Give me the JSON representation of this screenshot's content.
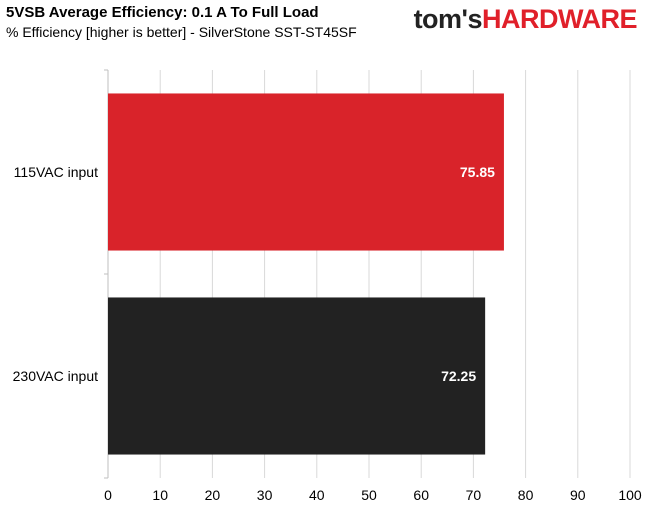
{
  "chart_data": {
    "type": "bar",
    "orientation": "horizontal",
    "title": "5VSB Average Efficiency: 0.1 A To Full Load",
    "subtitle": "% Efficiency [higher is better] - SilverStone SST-ST45SF",
    "categories": [
      "115VAC input",
      "230VAC input"
    ],
    "values": [
      75.85,
      72.25
    ],
    "value_labels": [
      "75.85",
      "72.25"
    ],
    "bar_colors": [
      "#d9232a",
      "#222222"
    ],
    "xlim": [
      0,
      100
    ],
    "xticks": [
      0,
      10,
      20,
      30,
      40,
      50,
      60,
      70,
      80,
      90,
      100
    ],
    "grid": true,
    "xlabel": "",
    "ylabel": ""
  },
  "logo": {
    "part1": "tom's",
    "part2": "HARDWARE"
  }
}
